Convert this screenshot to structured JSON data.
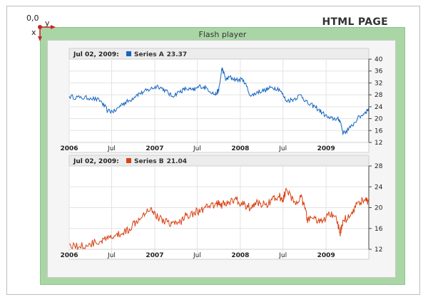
{
  "page": {
    "title": "HTML PAGE"
  },
  "flash": {
    "title": "Flash player"
  },
  "coords": {
    "origin": "0,0",
    "x_label": "x",
    "y_label": "y"
  },
  "colors": {
    "series_a": "#1565c0",
    "series_b": "#d84315",
    "axis_marker": "#c62828",
    "flash_bg": "#aad6a6"
  },
  "chart_data": [
    {
      "type": "line",
      "header_date": "Jul 02, 2009:",
      "series": [
        {
          "name": "Series A",
          "current_value": "23.37",
          "x": [
            "2006-01-01",
            "2006-02-15",
            "2006-04-01",
            "2006-05-15",
            "2006-06-15",
            "2006-07-15",
            "2006-08-15",
            "2006-09-15",
            "2006-10-15",
            "2006-11-15",
            "2006-12-15",
            "2007-01-15",
            "2007-02-15",
            "2007-03-15",
            "2007-04-15",
            "2007-05-15",
            "2007-06-15",
            "2007-07-15",
            "2007-08-15",
            "2007-09-15",
            "2007-10-01",
            "2007-10-15",
            "2007-11-01",
            "2007-11-15",
            "2007-12-15",
            "2008-01-15",
            "2008-02-15",
            "2008-03-15",
            "2008-04-15",
            "2008-05-15",
            "2008-06-15",
            "2008-07-15",
            "2008-08-15",
            "2008-09-15",
            "2008-10-15",
            "2008-11-15",
            "2008-12-15",
            "2009-01-15",
            "2009-02-15",
            "2009-03-01",
            "2009-03-15",
            "2009-04-15",
            "2009-05-15",
            "2009-06-15",
            "2009-07-02"
          ],
          "values": [
            27.5,
            27,
            27,
            26,
            22.5,
            22.5,
            25,
            26,
            28,
            29,
            30,
            31,
            29.5,
            27.5,
            29,
            30,
            29.5,
            31,
            30,
            28,
            29.5,
            37,
            33,
            34,
            33,
            33,
            27.5,
            29,
            29.5,
            30.5,
            30,
            26,
            26.5,
            28,
            25,
            24,
            22,
            20,
            20,
            19.5,
            15,
            17,
            20,
            22,
            23.37
          ]
        }
      ],
      "x_ticks": [
        "2006",
        "Jul",
        "2007",
        "Jul",
        "2008",
        "Jul",
        "2009"
      ],
      "y_ticks": [
        12,
        16,
        20,
        24,
        28,
        32,
        36,
        40
      ],
      "ylim": [
        12,
        40
      ]
    },
    {
      "type": "line",
      "header_date": "Jul 02, 2009:",
      "series": [
        {
          "name": "Series B",
          "current_value": "21.04",
          "x": [
            "2006-01-01",
            "2006-02-15",
            "2006-04-01",
            "2006-05-15",
            "2006-06-15",
            "2006-07-15",
            "2006-08-15",
            "2006-09-15",
            "2006-10-15",
            "2006-11-15",
            "2006-12-15",
            "2007-01-15",
            "2007-02-15",
            "2007-03-15",
            "2007-04-15",
            "2007-05-15",
            "2007-06-15",
            "2007-07-15",
            "2007-08-15",
            "2007-09-15",
            "2007-10-01",
            "2007-10-15",
            "2007-11-15",
            "2007-12-15",
            "2008-01-15",
            "2008-02-15",
            "2008-03-15",
            "2008-04-15",
            "2008-05-15",
            "2008-06-15",
            "2008-07-01",
            "2008-07-15",
            "2008-08-15",
            "2008-09-15",
            "2008-10-01",
            "2008-10-15",
            "2008-11-15",
            "2008-12-15",
            "2009-01-15",
            "2009-02-15",
            "2009-03-01",
            "2009-03-15",
            "2009-04-15",
            "2009-05-15",
            "2009-06-15",
            "2009-07-02"
          ],
          "values": [
            13,
            12.5,
            13,
            13.5,
            14,
            14.5,
            15,
            16,
            17.5,
            19,
            20,
            18,
            17.5,
            17,
            17,
            18.5,
            19,
            19.5,
            20,
            20.5,
            21,
            20.5,
            21,
            21.5,
            20.5,
            20,
            21,
            20.5,
            21.5,
            22,
            21.5,
            23.5,
            21,
            22,
            20,
            17.5,
            18,
            17,
            19,
            17.5,
            15,
            17.5,
            18.5,
            21,
            21.5,
            21.04
          ]
        }
      ],
      "x_ticks": [
        "2006",
        "Jul",
        "2007",
        "Jul",
        "2008",
        "Jul",
        "2009"
      ],
      "y_ticks": [
        12,
        16,
        20,
        24,
        28
      ],
      "ylim": [
        12,
        28
      ]
    }
  ]
}
